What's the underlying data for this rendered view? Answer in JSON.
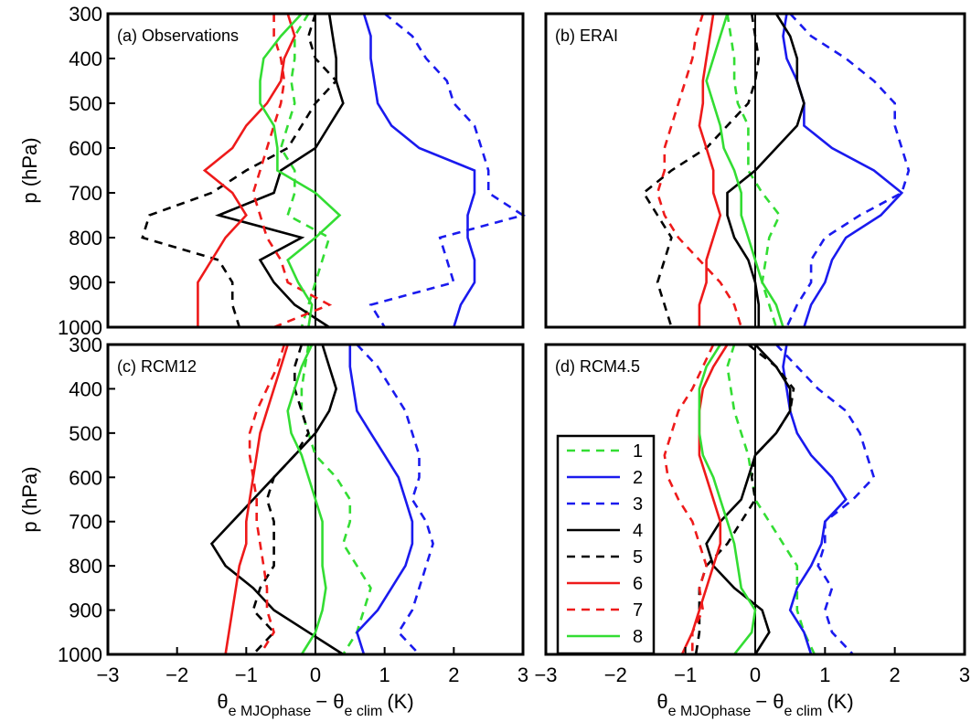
{
  "chart_data": [
    {
      "type": "line",
      "title": "(a) Observations",
      "ylabel": "p (hPa)",
      "xlim": [
        -3,
        3
      ],
      "ylim": [
        300,
        1000
      ],
      "y_inverted": true,
      "zero_line": true,
      "yticks": [
        300,
        400,
        500,
        600,
        700,
        800,
        900,
        1000
      ],
      "y": [
        300,
        350,
        400,
        450,
        500,
        550,
        600,
        650,
        700,
        750,
        800,
        850,
        900,
        950,
        1000
      ],
      "series": [
        {
          "name": "1",
          "color": "#33dd33",
          "dash": true,
          "values": [
            -0.1,
            -0.3,
            -0.3,
            -0.35,
            -0.3,
            -0.4,
            -0.5,
            -0.3,
            -0.3,
            -0.4,
            0.2,
            0.1,
            0.0,
            -0.1,
            -0.2
          ]
        },
        {
          "name": "2",
          "color": "#1a1aee",
          "dash": false,
          "values": [
            0.7,
            0.8,
            0.8,
            0.85,
            0.9,
            1.1,
            1.5,
            2.3,
            2.3,
            2.2,
            2.2,
            2.3,
            2.3,
            2.1,
            2.0
          ]
        },
        {
          "name": "3",
          "color": "#1a1aee",
          "dash": true,
          "values": [
            1.0,
            1.4,
            1.6,
            1.9,
            2.0,
            2.3,
            2.4,
            2.5,
            2.5,
            3.0,
            1.8,
            1.9,
            2.0,
            0.8,
            1.0
          ]
        },
        {
          "name": "4",
          "color": "#000000",
          "dash": false,
          "values": [
            0.2,
            0.25,
            0.3,
            0.3,
            0.4,
            0.2,
            0.0,
            -0.5,
            -0.6,
            -1.4,
            -0.2,
            -0.8,
            -0.6,
            -0.3,
            0.2
          ]
        },
        {
          "name": "5",
          "color": "#000000",
          "dash": true,
          "values": [
            0.0,
            -0.1,
            0.0,
            0.3,
            0.0,
            -0.2,
            -0.4,
            -1.0,
            -1.5,
            -2.4,
            -2.5,
            -1.4,
            -1.2,
            -1.2,
            -1.1
          ]
        },
        {
          "name": "6",
          "color": "#ee1a1a",
          "dash": false,
          "values": [
            -0.4,
            -0.3,
            -0.45,
            -0.5,
            -0.7,
            -1.0,
            -1.2,
            -1.6,
            -1.2,
            -1.0,
            -1.3,
            -1.5,
            -1.7,
            -1.7,
            -1.7
          ]
        },
        {
          "name": "7",
          "color": "#ee1a1a",
          "dash": true,
          "values": [
            -0.6,
            -0.6,
            -0.5,
            -0.45,
            -0.5,
            -0.6,
            -0.7,
            -0.8,
            -0.9,
            -0.8,
            -0.7,
            -0.5,
            -0.4,
            0.2,
            -0.6
          ]
        },
        {
          "name": "8",
          "color": "#33dd33",
          "dash": false,
          "values": [
            -0.2,
            -0.5,
            -0.75,
            -0.8,
            -0.8,
            -0.6,
            -0.55,
            -0.55,
            0.0,
            0.35,
            0.0,
            -0.4,
            -0.25,
            -0.05,
            -0.1
          ]
        }
      ]
    },
    {
      "type": "line",
      "title": "(b) ERAI",
      "xlim": [
        -3,
        3
      ],
      "ylim": [
        300,
        1000
      ],
      "y_inverted": true,
      "zero_line": true,
      "y": [
        300,
        350,
        400,
        450,
        500,
        550,
        600,
        650,
        700,
        750,
        800,
        850,
        900,
        950,
        1000
      ],
      "series": [
        {
          "name": "1",
          "color": "#33dd33",
          "dash": true,
          "values": [
            -0.4,
            -0.35,
            -0.3,
            -0.3,
            -0.25,
            -0.1,
            -0.1,
            -0.1,
            0.1,
            0.35,
            0.2,
            0.15,
            0.1,
            0.2,
            0.3
          ]
        },
        {
          "name": "2",
          "color": "#1a1aee",
          "dash": false,
          "values": [
            0.45,
            0.4,
            0.45,
            0.6,
            0.7,
            0.7,
            1.1,
            1.7,
            2.1,
            1.8,
            1.3,
            1.1,
            1.0,
            0.8,
            0.7
          ]
        },
        {
          "name": "3",
          "color": "#1a1aee",
          "dash": true,
          "values": [
            0.5,
            0.8,
            1.3,
            1.7,
            2.0,
            2.0,
            2.1,
            2.2,
            2.1,
            1.5,
            1.0,
            0.8,
            0.8,
            0.6,
            0.45
          ]
        },
        {
          "name": "4",
          "color": "#000000",
          "dash": false,
          "values": [
            0.3,
            0.5,
            0.6,
            0.6,
            0.7,
            0.6,
            0.3,
            0.0,
            -0.4,
            -0.4,
            -0.3,
            -0.1,
            0.0,
            0.05,
            0.05
          ]
        },
        {
          "name": "5",
          "color": "#000000",
          "dash": true,
          "values": [
            -0.05,
            0.0,
            0.05,
            0.0,
            -0.1,
            -0.4,
            -0.7,
            -1.2,
            -1.6,
            -1.4,
            -1.2,
            -1.3,
            -1.4,
            -1.3,
            -1.2
          ]
        },
        {
          "name": "6",
          "color": "#ee1a1a",
          "dash": false,
          "values": [
            -0.6,
            -0.65,
            -0.7,
            -0.75,
            -0.75,
            -0.8,
            -0.7,
            -0.6,
            -0.6,
            -0.5,
            -0.6,
            -0.7,
            -0.7,
            -0.8,
            -0.8
          ]
        },
        {
          "name": "7",
          "color": "#ee1a1a",
          "dash": true,
          "values": [
            -0.75,
            -0.85,
            -0.9,
            -1.0,
            -1.1,
            -1.2,
            -1.3,
            -1.3,
            -1.4,
            -1.3,
            -1.1,
            -0.8,
            -0.5,
            -0.3,
            -0.2
          ]
        },
        {
          "name": "8",
          "color": "#33dd33",
          "dash": false,
          "values": [
            -0.4,
            -0.5,
            -0.6,
            -0.7,
            -0.6,
            -0.5,
            -0.45,
            -0.3,
            -0.2,
            -0.2,
            -0.1,
            0.0,
            0.1,
            0.3,
            0.4
          ]
        }
      ]
    },
    {
      "type": "line",
      "title": "(c) RCM12",
      "ylabel": "p (hPa)",
      "xlabel": [
        "θ",
        "e MJOphase",
        "− θ",
        "e clim",
        "(K)"
      ],
      "xlim": [
        -3,
        3
      ],
      "ylim": [
        300,
        1000
      ],
      "y_inverted": true,
      "zero_line": true,
      "yticks": [
        300,
        400,
        500,
        600,
        700,
        800,
        900,
        1000
      ],
      "xticks": [
        {
          "value": -3,
          "label": "−3"
        },
        {
          "value": -2,
          "label": "−2"
        },
        {
          "value": -1,
          "label": "−1"
        },
        0,
        1,
        2,
        3
      ],
      "y": [
        300,
        350,
        400,
        450,
        500,
        550,
        600,
        650,
        700,
        750,
        800,
        850,
        900,
        950,
        1000
      ],
      "series": [
        {
          "name": "1",
          "color": "#33dd33",
          "dash": true,
          "values": [
            -0.1,
            -0.15,
            -0.2,
            -0.2,
            -0.1,
            0.0,
            0.3,
            0.5,
            0.5,
            0.4,
            0.6,
            0.8,
            0.7,
            0.6,
            0.4
          ]
        },
        {
          "name": "2",
          "color": "#1a1aee",
          "dash": false,
          "values": [
            0.5,
            0.5,
            0.55,
            0.6,
            0.8,
            1.0,
            1.2,
            1.3,
            1.4,
            1.4,
            1.3,
            1.1,
            0.9,
            0.6,
            0.7
          ]
        },
        {
          "name": "3",
          "color": "#1a1aee",
          "dash": true,
          "values": [
            0.6,
            0.9,
            1.1,
            1.3,
            1.4,
            1.5,
            1.5,
            1.4,
            1.6,
            1.7,
            1.6,
            1.5,
            1.4,
            1.2,
            1.5
          ]
        },
        {
          "name": "4",
          "color": "#000000",
          "dash": false,
          "values": [
            0.1,
            0.2,
            0.3,
            0.2,
            0.0,
            -0.3,
            -0.6,
            -0.9,
            -1.2,
            -1.5,
            -1.3,
            -0.9,
            -0.6,
            -0.1,
            0.4
          ]
        },
        {
          "name": "5",
          "color": "#000000",
          "dash": true,
          "values": [
            -0.2,
            -0.3,
            -0.3,
            -0.2,
            -0.1,
            -0.3,
            -0.6,
            -0.7,
            -0.6,
            -0.6,
            -0.6,
            -0.8,
            -0.9,
            -0.6,
            -0.9
          ]
        },
        {
          "name": "6",
          "color": "#ee1a1a",
          "dash": false,
          "values": [
            -0.4,
            -0.5,
            -0.6,
            -0.7,
            -0.8,
            -0.85,
            -0.9,
            -0.95,
            -1.0,
            -1.0,
            -1.1,
            -1.15,
            -1.2,
            -1.25,
            -1.3
          ]
        },
        {
          "name": "7",
          "color": "#ee1a1a",
          "dash": true,
          "values": [
            -0.45,
            -0.55,
            -0.7,
            -0.85,
            -0.95,
            -0.95,
            -0.9,
            -0.85,
            -0.85,
            -0.8,
            -0.75,
            -0.7,
            -0.7,
            -0.6,
            -0.8
          ]
        },
        {
          "name": "8",
          "color": "#33dd33",
          "dash": false,
          "values": [
            -0.05,
            -0.2,
            -0.3,
            -0.4,
            -0.35,
            -0.2,
            -0.1,
            0.0,
            0.1,
            0.1,
            0.1,
            0.15,
            0.1,
            0.0,
            -0.2
          ]
        }
      ]
    },
    {
      "type": "line",
      "title": "(d) RCM4.5",
      "xlabel": [
        "θ",
        "e MJOphase",
        "− θ",
        "e clim",
        "(K)"
      ],
      "xlim": [
        -3,
        3
      ],
      "ylim": [
        300,
        1000
      ],
      "y_inverted": true,
      "zero_line": true,
      "legend": "left",
      "xticks": [
        {
          "value": -3,
          "label": "−3"
        },
        {
          "value": -2,
          "label": "−2"
        },
        {
          "value": -1,
          "label": "−1"
        },
        0,
        1,
        2,
        3
      ],
      "y": [
        300,
        350,
        400,
        450,
        500,
        550,
        600,
        650,
        700,
        750,
        800,
        850,
        900,
        950,
        1000
      ],
      "series": [
        {
          "name": "1",
          "color": "#33dd33",
          "dash": true,
          "values": [
            -0.3,
            -0.4,
            -0.35,
            -0.3,
            -0.2,
            -0.1,
            -0.05,
            0.0,
            0.2,
            0.4,
            0.6,
            0.6,
            0.6,
            0.7,
            0.85
          ]
        },
        {
          "name": "2",
          "color": "#1a1aee",
          "dash": false,
          "values": [
            0.45,
            0.4,
            0.45,
            0.5,
            0.6,
            0.8,
            1.1,
            1.3,
            1.0,
            0.95,
            0.8,
            0.6,
            0.5,
            0.7,
            0.8
          ]
        },
        {
          "name": "3",
          "color": "#1a1aee",
          "dash": true,
          "values": [
            0.3,
            0.6,
            0.9,
            1.3,
            1.5,
            1.6,
            1.7,
            1.4,
            1.0,
            1.0,
            0.9,
            1.1,
            1.0,
            1.1,
            1.4
          ]
        },
        {
          "name": "4",
          "color": "#000000",
          "dash": false,
          "values": [
            0.0,
            0.3,
            0.5,
            0.5,
            0.3,
            0.0,
            -0.1,
            -0.2,
            -0.5,
            -0.7,
            -0.6,
            -0.3,
            0.1,
            0.2,
            0.0
          ]
        },
        {
          "name": "5",
          "color": "#000000",
          "dash": true,
          "values": [
            -0.1,
            0.3,
            0.55,
            0.5,
            0.3,
            0.0,
            -0.05,
            0.0,
            -0.2,
            -0.4,
            -0.7,
            -0.8,
            -0.8,
            -0.8,
            -0.85
          ]
        },
        {
          "name": "6",
          "color": "#ee1a1a",
          "dash": false,
          "values": [
            -0.4,
            -0.6,
            -0.75,
            -0.8,
            -0.8,
            -0.8,
            -0.7,
            -0.6,
            -0.5,
            -0.5,
            -0.6,
            -0.7,
            -0.8,
            -0.9,
            -1.05
          ]
        },
        {
          "name": "7",
          "color": "#ee1a1a",
          "dash": true,
          "values": [
            -0.6,
            -0.75,
            -0.9,
            -1.1,
            -1.2,
            -1.3,
            -1.25,
            -1.1,
            -0.9,
            -0.8,
            -0.7,
            -0.8,
            -0.75,
            -0.9,
            -0.9
          ]
        },
        {
          "name": "8",
          "color": "#33dd33",
          "dash": false,
          "values": [
            -0.5,
            -0.7,
            -0.8,
            -0.8,
            -0.8,
            -0.75,
            -0.6,
            -0.5,
            -0.4,
            -0.3,
            -0.25,
            -0.2,
            0.0,
            -0.05,
            -0.3
          ]
        }
      ]
    }
  ]
}
